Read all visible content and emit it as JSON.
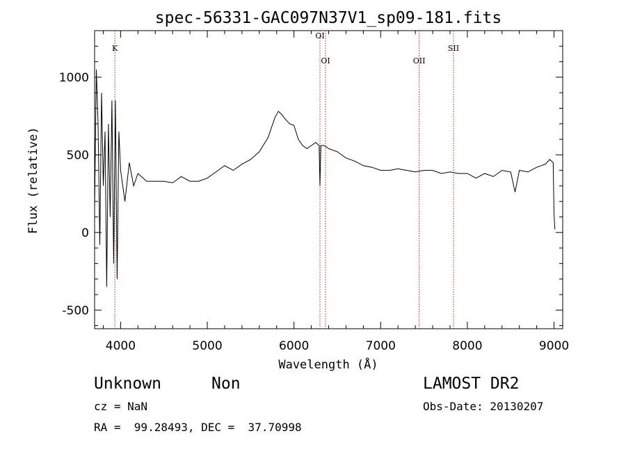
{
  "chart_data": {
    "type": "line",
    "title": "spec-56331-GAC097N37V1_sp09-181.fits",
    "xlabel": "Wavelength (Å)",
    "ylabel": "Flux (relative)",
    "xlim": [
      3700,
      9100
    ],
    "ylim": [
      -620,
      1300
    ],
    "x_ticks": [
      4000,
      5000,
      6000,
      7000,
      8000,
      9000
    ],
    "y_ticks": [
      -500,
      0,
      500,
      1000
    ],
    "grid": false,
    "series": [
      {
        "x": [
          3700,
          3720,
          3740,
          3760,
          3780,
          3800,
          3820,
          3840,
          3860,
          3880,
          3900,
          3920,
          3940,
          3960,
          3980,
          4000,
          4050,
          4100,
          4150,
          4200,
          4300,
          4400,
          4500,
          4600,
          4700,
          4800,
          4900,
          5000,
          5100,
          5200,
          5300,
          5400,
          5500,
          5600,
          5700,
          5780,
          5820,
          5860,
          5900,
          5950,
          6000,
          6050,
          6100,
          6150,
          6200,
          6250,
          6290,
          6300,
          6310,
          6350,
          6400,
          6500,
          6600,
          6700,
          6800,
          6900,
          7000,
          7100,
          7200,
          7300,
          7400,
          7500,
          7600,
          7700,
          7800,
          7900,
          8000,
          8100,
          8200,
          8300,
          8400,
          8500,
          8550,
          8600,
          8700,
          8800,
          8900,
          8950,
          8990,
          9000,
          9010
        ],
        "y": [
          150,
          1050,
          700,
          -80,
          900,
          300,
          650,
          -350,
          700,
          100,
          850,
          -200,
          850,
          -300,
          650,
          400,
          200,
          450,
          300,
          380,
          330,
          330,
          330,
          320,
          360,
          330,
          330,
          350,
          390,
          430,
          400,
          440,
          470,
          520,
          610,
          740,
          780,
          760,
          730,
          700,
          690,
          600,
          560,
          540,
          560,
          580,
          560,
          300,
          560,
          560,
          540,
          520,
          480,
          460,
          430,
          420,
          400,
          400,
          410,
          400,
          390,
          400,
          400,
          380,
          390,
          380,
          380,
          350,
          380,
          360,
          400,
          390,
          260,
          400,
          390,
          420,
          440,
          470,
          450,
          120,
          20
        ]
      }
    ],
    "line_annotations": [
      {
        "label": "K",
        "x": 3934,
        "label_y": 1170
      },
      {
        "label": "OI",
        "x": 6300,
        "label_y": 1250
      },
      {
        "label": "OI",
        "x": 6364,
        "label_y": 1090
      },
      {
        "label": "OII",
        "x": 7444,
        "label_y": 1090
      },
      {
        "label": "SII",
        "x": 7840,
        "label_y": 1170
      }
    ],
    "annotation_color": "#b22222",
    "line_color": "#000000"
  },
  "info": {
    "object_class": "Unknown",
    "object_subclass": "Non",
    "redshift": "cz = NaN",
    "coords": "RA =  99.28493, DEC =  37.70998",
    "survey": "LAMOST DR2",
    "obs_date": "Obs-Date: 20130207"
  }
}
